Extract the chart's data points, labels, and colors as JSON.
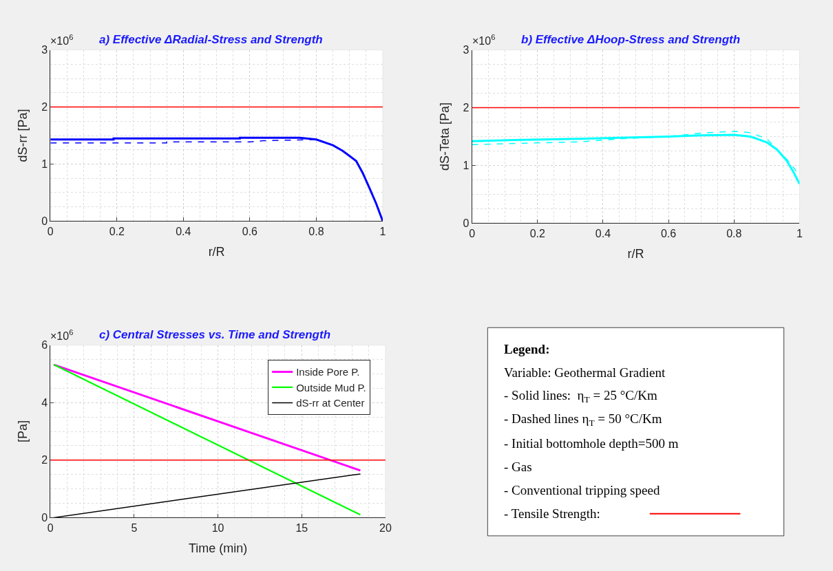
{
  "chart_data": [
    {
      "type": "line",
      "title": "a) Effective ΔRadial-Stress and Strength",
      "xlabel": "r/R",
      "ylabel": "dS-rr [Pa]",
      "annotations": [
        "×10$^{6}$"
      ],
      "xlim": [
        0,
        1
      ],
      "xticks": [
        0,
        0.2,
        0.4,
        0.6,
        0.8,
        1
      ],
      "ylim": [
        0,
        3
      ],
      "yticks": [
        0,
        1,
        2,
        3
      ],
      "grid": true,
      "legend": false,
      "series": [
        {
          "color": "#0000ff",
          "line_style": "solid",
          "x": [
            0,
            0.19,
            0.19,
            0.57,
            0.57,
            0.75,
            0.8,
            0.85,
            0.88,
            0.92,
            0.94,
            0.96,
            0.98,
            1.0
          ],
          "values": [
            1.43,
            1.43,
            1.45,
            1.45,
            1.46,
            1.46,
            1.43,
            1.33,
            1.23,
            1.055,
            0.84,
            0.58,
            0.31,
            0
          ]
        },
        {
          "color": "#0000ff",
          "line_style": "dashed",
          "x": [
            0,
            0.35,
            0.35,
            0.6,
            0.64,
            0.8
          ],
          "values": [
            1.37,
            1.37,
            1.39,
            1.39,
            1.41,
            1.43
          ]
        }
      ],
      "ref_lines": [
        {
          "axis": "y",
          "value": 2,
          "color": "#ff0000"
        }
      ]
    },
    {
      "type": "line",
      "title": "b) Effective ΔHoop-Stress and Strength",
      "xlabel": "r/R",
      "ylabel": "dS-Teta [Pa]",
      "annotations": [
        "×10$^{6}$"
      ],
      "xlim": [
        0,
        1
      ],
      "xticks": [
        0,
        0.2,
        0.4,
        0.6,
        0.8,
        1
      ],
      "ylim": [
        0,
        3
      ],
      "yticks": [
        0,
        1,
        2,
        3
      ],
      "grid": true,
      "legend": false,
      "series": [
        {
          "color": "#00ffff",
          "line_style": "solid",
          "x": [
            0,
            0.13,
            0.33,
            0.45,
            0.6,
            0.7,
            0.8,
            0.85,
            0.9,
            0.93,
            0.96,
            0.98,
            1.0
          ],
          "values": [
            1.42,
            1.44,
            1.46,
            1.48,
            1.5,
            1.52,
            1.53,
            1.5,
            1.4,
            1.28,
            1.09,
            0.9,
            0.68
          ]
        },
        {
          "color": "#00ffff",
          "line_style": "dashed",
          "x": [
            0,
            0.33,
            0.45,
            0.6,
            0.7,
            0.8,
            0.85,
            0.9,
            0.94,
            0.97,
            0.99
          ],
          "values": [
            1.36,
            1.41,
            1.46,
            1.5,
            1.56,
            1.59,
            1.57,
            1.46,
            1.23,
            1.05,
            0.9
          ]
        }
      ],
      "ref_lines": [
        {
          "axis": "y",
          "value": 2,
          "color": "#ff0000"
        }
      ]
    },
    {
      "type": "line",
      "title": "c) Central Stresses vs. Time and Strength",
      "xlabel": "Time (min)",
      "ylabel": "[Pa]",
      "annotations": [
        "×10$^{6}$"
      ],
      "xlim": [
        0,
        20
      ],
      "xticks": [
        0,
        5,
        10,
        15,
        20
      ],
      "ylim": [
        0,
        6
      ],
      "yticks": [
        0,
        2,
        4,
        6
      ],
      "grid": true,
      "legend": "top right",
      "series": [
        {
          "name": "Inside Pore P.",
          "color": "#ff00ff",
          "x": [
            0.2,
            18.5
          ],
          "values": [
            5.32,
            1.64
          ]
        },
        {
          "name": "Outside Mud P.",
          "color": "#00ff00",
          "x": [
            0.2,
            18.5
          ],
          "values": [
            5.32,
            0.1
          ]
        },
        {
          "name": "dS-rr at Center",
          "color": "#000000",
          "x": [
            0.2,
            18.5
          ],
          "values": [
            0,
            1.52
          ]
        }
      ],
      "ref_lines": [
        {
          "axis": "y",
          "value": 2,
          "color": "#ff0000"
        }
      ]
    },
    {
      "type": "other",
      "title": "Legend:",
      "annotations": [
        "Variable: Geothermal Gradient",
        "- Solid lines:  η$_{T}$ = 25 °C/Km",
        "- Dashed lines η$_{T}$ = 50 °C/Km",
        "- Initial bottomhole depth=500 m",
        "- Gas",
        "- Conventional tripping speed",
        "- Tensile Strength:"
      ]
    }
  ]
}
